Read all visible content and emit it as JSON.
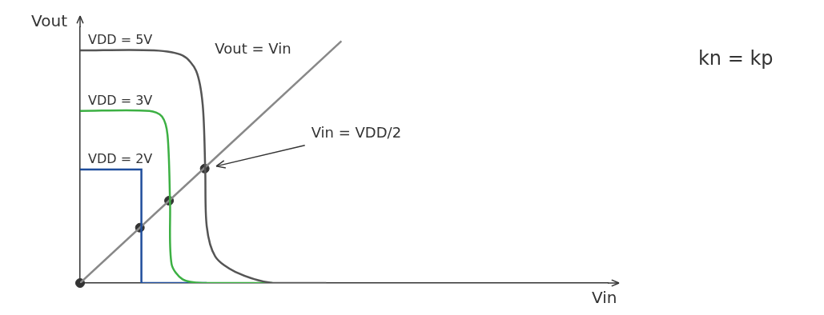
{
  "chart_data": {
    "type": "line",
    "x_label": "Vin",
    "y_label": "Vout",
    "xlim": [
      0,
      10.5
    ],
    "ylim": [
      0,
      5.5
    ],
    "tick_labels": false,
    "grid": false,
    "series": [
      {
        "name": "VDD = 5V",
        "color": "#555555",
        "line_style": "solid",
        "x": [
          0,
          1.47,
          2.04,
          2.31,
          2.44,
          2.49,
          2.52,
          2.69,
          3.09,
          3.83,
          4.9
        ],
        "values": [
          5.0,
          5.0,
          4.89,
          4.56,
          3.83,
          2.44,
          1.22,
          0.57,
          0.24,
          0.0,
          0.0
        ]
      },
      {
        "name": "VDD = 3V",
        "color": "#3cb043",
        "line_style": "solid",
        "x": [
          0,
          1.38,
          1.63,
          1.74,
          1.79,
          1.82,
          2.04,
          2.44,
          3.83
        ],
        "values": [
          3.7,
          3.7,
          3.58,
          3.18,
          1.74,
          0.41,
          0.08,
          0.0,
          0.0
        ]
      },
      {
        "name": "VDD = 2V",
        "color": "#1f4e9c",
        "line_style": "solid",
        "x": [
          0,
          1.22,
          1.22,
          2.52
        ],
        "values": [
          2.44,
          2.44,
          0.0,
          0.0
        ]
      },
      {
        "color": "#888888",
        "line_style": "solid",
        "x": [
          0,
          5.2
        ],
        "values": [
          0,
          5.2
        ]
      },
      {
        "type": "scatter",
        "color": "#333333",
        "marker": "circle",
        "x": [
          0,
          1.19,
          1.77,
          2.48
        ],
        "values": [
          0,
          1.19,
          1.77,
          2.46
        ]
      }
    ],
    "annotations": [
      {
        "text": "Vout = Vin",
        "x": 4.2,
        "y": 4.85
      },
      {
        "text": "Vin = VDD/2",
        "x": 4.6,
        "y": 3.2,
        "arrow_to": [
          2.55,
          2.46
        ]
      },
      {
        "text": "kn = kp",
        "x": 12.3,
        "y": 4.8
      }
    ]
  }
}
